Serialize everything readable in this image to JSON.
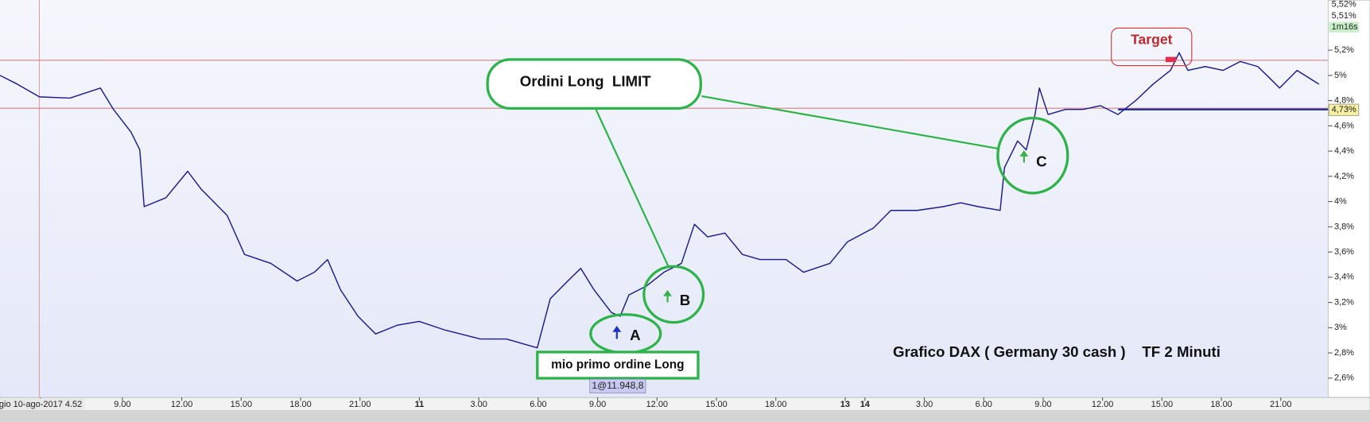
{
  "chart_data": {
    "type": "line",
    "title": "Grafico DAX ( Germany 30 cash )    TF 2 Minuti",
    "x": [
      2.82,
      3.7,
      4.81,
      6.35,
      7.89,
      8.55,
      9.44,
      9.88,
      10.1,
      11.2,
      12.3,
      12.97,
      14.29,
      15.17,
      16.5,
      17.82,
      18.7,
      19.36,
      20.02,
      20.9,
      21.79,
      22.89,
      23.99,
      25.32,
      27.08,
      28.4,
      29.95,
      30.61,
      31.49,
      32.15,
      32.82,
      33.7,
      34.14,
      34.58,
      35.46,
      36.35,
      37.23,
      37.89,
      38.55,
      39.43,
      40.31,
      41.2,
      42.52,
      43.4,
      44.73,
      45.61,
      46.93,
      47.81,
      49.14,
      50.46,
      51.34,
      52.22,
      53.33,
      53.55,
      54.21,
      54.65,
      55.09,
      55.31,
      55.75,
      56.63,
      57.52,
      58.4,
      59.28,
      60.17,
      61.05,
      61.93,
      62.37,
      62.81,
      63.69,
      64.58,
      65.46,
      66.34,
      67.0,
      67.44,
      68.32,
      69.43
    ],
    "series": [
      {
        "color": "#1a1a8c",
        "values": [
          5.0,
          4.93,
          4.83,
          4.82,
          4.9,
          4.73,
          4.55,
          4.41,
          3.96,
          4.03,
          4.24,
          4.1,
          3.89,
          3.58,
          3.51,
          3.37,
          3.44,
          3.54,
          3.3,
          3.09,
          2.95,
          3.02,
          3.05,
          2.98,
          2.91,
          2.91,
          2.84,
          3.23,
          3.37,
          3.47,
          3.3,
          3.12,
          3.09,
          3.26,
          3.33,
          3.44,
          3.51,
          3.82,
          3.72,
          3.75,
          3.58,
          3.54,
          3.54,
          3.44,
          3.51,
          3.68,
          3.79,
          3.93,
          3.93,
          3.96,
          3.99,
          3.96,
          3.93,
          4.27,
          4.48,
          4.41,
          4.69,
          4.9,
          4.69,
          4.73,
          4.73,
          4.76,
          4.69,
          4.8,
          4.93,
          5.04,
          5.18,
          5.04,
          5.07,
          5.04,
          5.11,
          5.07,
          4.97,
          4.9,
          5.04,
          4.93
        ]
      }
    ],
    "xlim": [
      2.82,
      69.8
    ],
    "ylim": [
      2.447,
      5.597
    ],
    "xticks": [
      {
        "value": 4.87,
        "label": "gio 10-ago-2017 4.52"
      },
      {
        "value": 9,
        "label": "9.00"
      },
      {
        "value": 12,
        "label": "12.00"
      },
      {
        "value": 15,
        "label": "15.00"
      },
      {
        "value": 18,
        "label": "18.00"
      },
      {
        "value": 21,
        "label": "21.00"
      },
      {
        "value": 24,
        "label": "11"
      },
      {
        "value": 27,
        "label": "3.00"
      },
      {
        "value": 30,
        "label": "6.00"
      },
      {
        "value": 33,
        "label": "9.00"
      },
      {
        "value": 36,
        "label": "12.00"
      },
      {
        "value": 39,
        "label": "15.00"
      },
      {
        "value": 42,
        "label": "18.00"
      },
      {
        "value": 45.5,
        "label": "13"
      },
      {
        "value": 46.5,
        "label": "14"
      },
      {
        "value": 49.5,
        "label": "3.00"
      },
      {
        "value": 52.5,
        "label": "6.00"
      },
      {
        "value": 55.5,
        "label": "9.00"
      },
      {
        "value": 58.5,
        "label": "12.00"
      },
      {
        "value": 61.5,
        "label": "15.00"
      },
      {
        "value": 64.5,
        "label": "18.00"
      },
      {
        "value": 67.5,
        "label": "21.00"
      }
    ],
    "yticks": [
      {
        "value": 2.6,
        "label": "2,6%"
      },
      {
        "value": 2.8,
        "label": "2,8%"
      },
      {
        "value": 3,
        "label": "3%"
      },
      {
        "value": 3.2,
        "label": "3,2%"
      },
      {
        "value": 3.4,
        "label": "3,4%"
      },
      {
        "value": 3.6,
        "label": "3,6%"
      },
      {
        "value": 3.8,
        "label": "3,8%"
      },
      {
        "value": 4,
        "label": "4%"
      },
      {
        "value": 4.2,
        "label": "4,2%"
      },
      {
        "value": 4.4,
        "label": "4,4%"
      },
      {
        "value": 4.6,
        "label": "4,6%"
      },
      {
        "value": 4.8,
        "label": "4,8%"
      },
      {
        "value": 5,
        "label": "5%"
      },
      {
        "value": 5.2,
        "label": "5,2%"
      }
    ],
    "grid": false,
    "reference_lines": {
      "color": "#d98080",
      "values": [
        5.12,
        4.74
      ]
    },
    "current_level": {
      "value": 4.73,
      "label": "4,73%",
      "color": "#1a2a9c"
    },
    "axis_header": [
      "5,52%",
      "5,51%",
      "1m16s"
    ],
    "annotations": {
      "target": "Target",
      "orders": "Ordini Long  LIMIT",
      "first_order": "mio primo ordine Long",
      "fill": "1@11.948,8",
      "a": "A",
      "b": "B",
      "c": "C"
    }
  }
}
